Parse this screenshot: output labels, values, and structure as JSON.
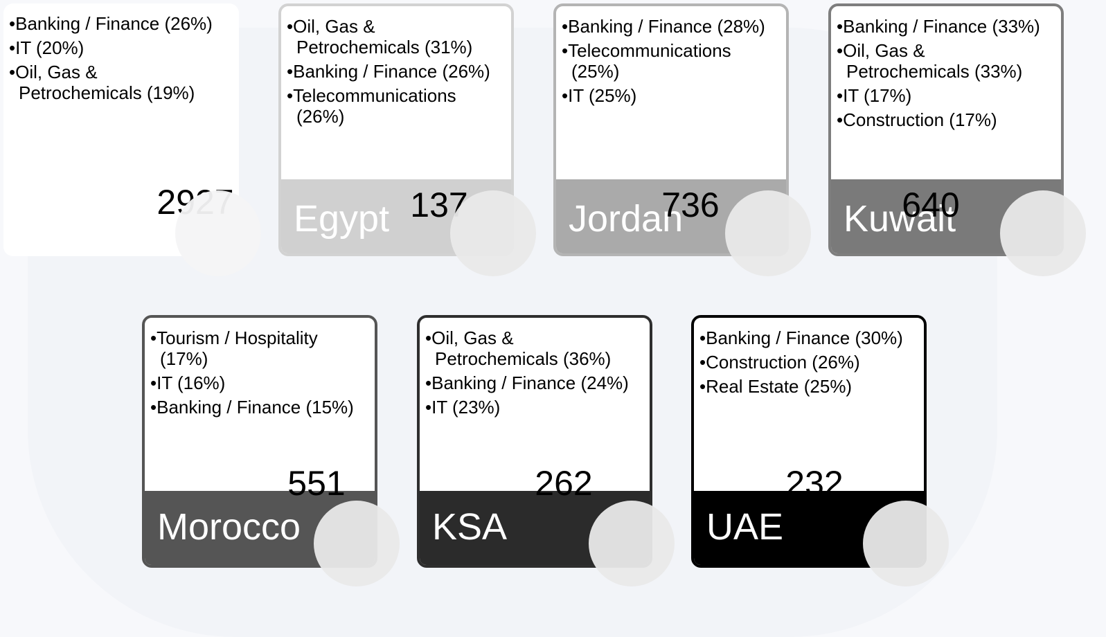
{
  "cards": [
    {
      "items": [
        "Banking / Finance (26%)",
        "IT (20%)",
        "Oil, Gas & Petrochemicals (19%)"
      ],
      "value": 2927
    },
    {
      "items": [
        "Oil, Gas & Petrochemicals (31%)",
        "Banking / Finance (26%)",
        "Telecommunications (26%)"
      ],
      "value": 137,
      "name": "Egypt"
    },
    {
      "items": [
        "Banking / Finance (28%)",
        "Telecommunications (25%)",
        "IT (25%)"
      ],
      "value": 736,
      "name": "Jordan"
    },
    {
      "items": [
        "Banking / Finance (33%)",
        "Oil, Gas & Petrochemicals (33%)",
        "IT (17%)",
        "Construction (17%)"
      ],
      "value": 640,
      "name": "Kuwait"
    },
    {
      "items": [
        "Tourism / Hospitality (17%)",
        "IT (16%)",
        "Banking / Finance (15%)"
      ],
      "value": 551,
      "name": "Morocco"
    },
    {
      "items": [
        "Oil, Gas & Petrochemicals (36%)",
        "Banking / Finance (24%)",
        "IT (23%)"
      ],
      "value": 262,
      "name": "KSA"
    },
    {
      "items": [
        "Banking / Finance (30%)",
        "Construction (26%)",
        "Real Estate (25%)"
      ],
      "value": 232,
      "name": "UAE"
    }
  ]
}
